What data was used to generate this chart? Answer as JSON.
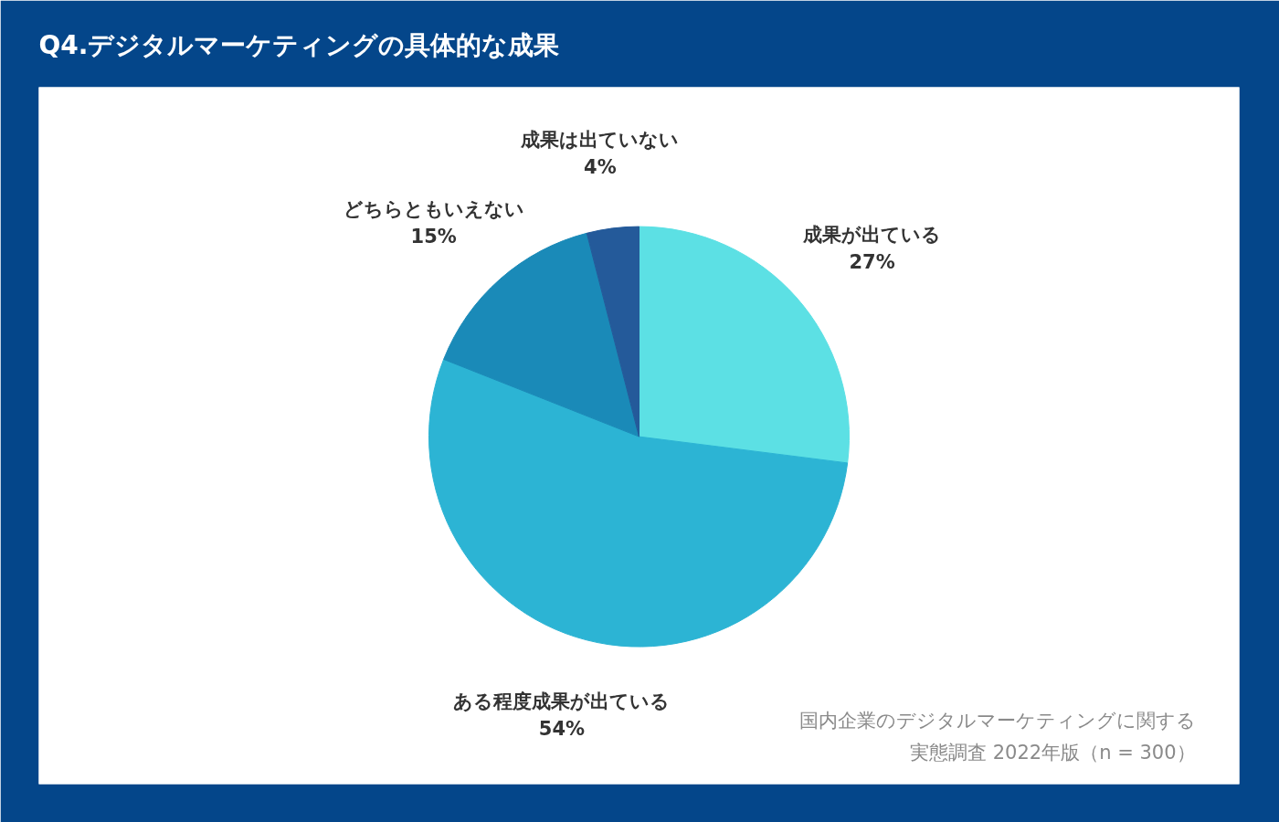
{
  "chart_data": {
    "type": "pie",
    "title": "Q4.デジタルマーケティングの具体的な成果",
    "categories": [
      "成果が出ている",
      "ある程度成果が出ている",
      "どちらともいえない",
      "成果は出ていない"
    ],
    "values": [
      27,
      54,
      15,
      4
    ],
    "colors": [
      "#5ce0e4",
      "#2cb4d4",
      "#1a8ab8",
      "#245a9a"
    ],
    "value_labels": [
      "27%",
      "54%",
      "15%",
      "4%"
    ],
    "annotations": [
      "国内企業のデジタルマーケティングに関する",
      "実態調査 2022年版（n = 300）"
    ]
  }
}
